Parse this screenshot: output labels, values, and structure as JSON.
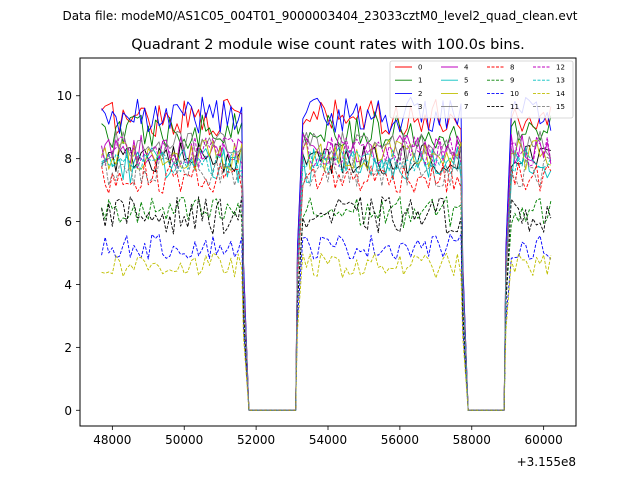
{
  "suptitle": "Data file: modeM0/AS1C05_004T01_9000003404_23033cztM0_level2_quad_clean.evt",
  "chart_data": {
    "type": "line",
    "title": "Quadrant 2 module wise count rates with 100.0s bins.",
    "xlabel": "",
    "ylabel": "",
    "x_offset_label": "+3.155e8",
    "x_offset": 315500000,
    "xlim": [
      47100,
      60900
    ],
    "ylim": [
      -0.5,
      11.2
    ],
    "x_ticks": [
      48000,
      50000,
      52000,
      54000,
      56000,
      58000,
      60000
    ],
    "x_tick_labels": [
      "48000",
      "50000",
      "52000",
      "54000",
      "56000",
      "58000",
      "60000"
    ],
    "y_ticks": [
      0,
      2,
      4,
      6,
      8,
      10
    ],
    "y_tick_labels": [
      "0",
      "2",
      "4",
      "6",
      "8",
      "10"
    ],
    "grid": false,
    "legend_position": "top-right",
    "bin_size_s": 100,
    "segments": [
      {
        "start": 47700,
        "end": 51600,
        "state": "on"
      },
      {
        "start": 51600,
        "end": 51800,
        "state": "drop"
      },
      {
        "start": 51800,
        "end": 53100,
        "state": "off"
      },
      {
        "start": 53100,
        "end": 53300,
        "state": "rise"
      },
      {
        "start": 53300,
        "end": 57700,
        "state": "on"
      },
      {
        "start": 57700,
        "end": 57900,
        "state": "drop"
      },
      {
        "start": 57900,
        "end": 58900,
        "state": "off"
      },
      {
        "start": 58900,
        "end": 59100,
        "state": "rise"
      },
      {
        "start": 59100,
        "end": 60200,
        "state": "on"
      }
    ],
    "series": [
      {
        "name": "0",
        "color": "#ff0000",
        "style": "solid",
        "mean": 9.3,
        "amplitude": 0.6
      },
      {
        "name": "1",
        "color": "#008000",
        "style": "solid",
        "mean": 8.9,
        "amplitude": 0.6
      },
      {
        "name": "2",
        "color": "#0000ff",
        "style": "solid",
        "mean": 9.4,
        "amplitude": 0.6
      },
      {
        "name": "3",
        "color": "#000000",
        "style": "solid",
        "mean": 8.0,
        "amplitude": 0.5
      },
      {
        "name": "4",
        "color": "#bf00bf",
        "style": "solid",
        "mean": 8.3,
        "amplitude": 0.5
      },
      {
        "name": "5",
        "color": "#00bfbf",
        "style": "solid",
        "mean": 7.8,
        "amplitude": 0.6
      },
      {
        "name": "6",
        "color": "#bfbf00",
        "style": "solid",
        "mean": 8.1,
        "amplitude": 0.5
      },
      {
        "name": "7",
        "color": "#808080",
        "style": "solid",
        "mean": 8.4,
        "amplitude": 0.5
      },
      {
        "name": "8",
        "color": "#ff0000",
        "style": "dashed",
        "mean": 7.4,
        "amplitude": 0.5
      },
      {
        "name": "9",
        "color": "#008000",
        "style": "dashed",
        "mean": 6.3,
        "amplitude": 0.5
      },
      {
        "name": "10",
        "color": "#0000ff",
        "style": "dashed",
        "mean": 5.2,
        "amplitude": 0.4
      },
      {
        "name": "11",
        "color": "#000000",
        "style": "dashed",
        "mean": 6.2,
        "amplitude": 0.6
      },
      {
        "name": "12",
        "color": "#bf00bf",
        "style": "dashed",
        "mean": 8.2,
        "amplitude": 0.5
      },
      {
        "name": "13",
        "color": "#00bfbf",
        "style": "dashed",
        "mean": 7.9,
        "amplitude": 0.4
      },
      {
        "name": "14",
        "color": "#bfbf00",
        "style": "dashed",
        "mean": 4.6,
        "amplitude": 0.4
      },
      {
        "name": "15",
        "color": "#808080",
        "style": "dashed",
        "mean": 7.6,
        "amplitude": 0.5
      }
    ]
  }
}
